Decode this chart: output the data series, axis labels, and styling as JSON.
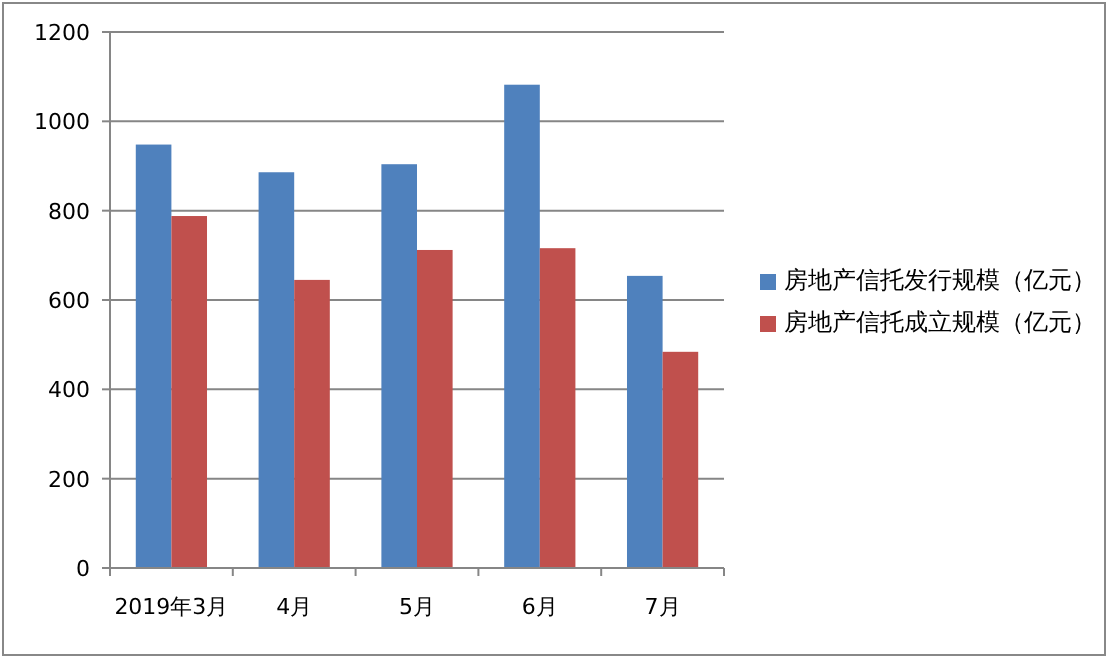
{
  "chart_data": {
    "type": "bar",
    "categories": [
      "2019年3月",
      "4月",
      "5月",
      "6月",
      "7月"
    ],
    "series": [
      {
        "name": "房地产信托发行规模（亿元）",
        "color": "#4f81bd",
        "values": [
          948,
          886,
          904,
          1082,
          654
        ]
      },
      {
        "name": "房地产信托成立规模（亿元）",
        "color": "#c0504d",
        "values": [
          788,
          645,
          712,
          716,
          484
        ]
      }
    ],
    "ylim": [
      0,
      1200
    ],
    "yticks": [
      0,
      200,
      400,
      600,
      800,
      1000,
      1200
    ],
    "grid": "y",
    "legend": "right"
  }
}
